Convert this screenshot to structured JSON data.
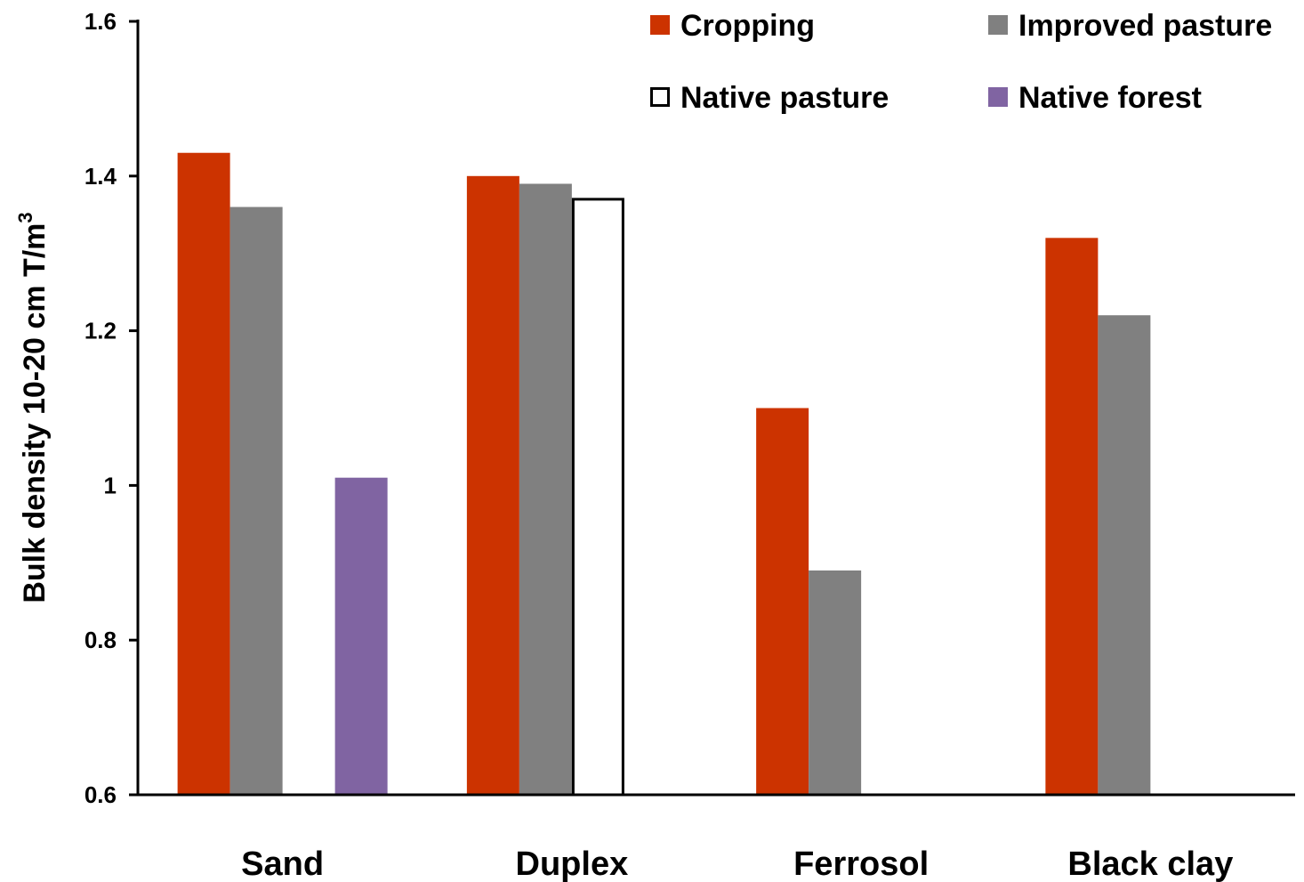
{
  "chart_data": {
    "type": "bar",
    "title": "",
    "xlabel": "",
    "ylabel": "Bulk density 10-20 cm T/m",
    "ylabel_sup": "3",
    "categories": [
      "Sand",
      "Duplex",
      "Ferrosol",
      "Black clay"
    ],
    "ylim": [
      0.6,
      1.6
    ],
    "yticks": [
      0.6,
      0.8,
      1,
      1.2,
      1.4,
      1.6
    ],
    "ytick_labels": [
      "0.6",
      "0.8",
      "1",
      "1.2",
      "1.4",
      "1.6"
    ],
    "grid": false,
    "legend_position": "top-right",
    "series": [
      {
        "name": "Cropping",
        "color": "#cc3300",
        "outline": false,
        "values": [
          1.43,
          1.4,
          1.1,
          1.32
        ]
      },
      {
        "name": "Improved pasture",
        "color": "#808080",
        "outline": false,
        "values": [
          1.36,
          1.39,
          0.89,
          1.22
        ]
      },
      {
        "name": "Native pasture",
        "color": "#ffffff",
        "outline": true,
        "values": [
          null,
          1.37,
          null,
          null
        ]
      },
      {
        "name": "Native forest",
        "color": "#8064a2",
        "outline": false,
        "values": [
          1.01,
          null,
          null,
          null
        ]
      }
    ]
  }
}
